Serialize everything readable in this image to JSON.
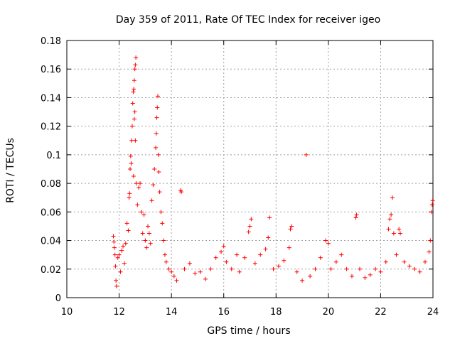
{
  "chart_data": {
    "type": "scatter",
    "title": "Day 359 of 2011, Rate Of TEC Index for receiver igeo",
    "xlabel": "GPS time / hours",
    "ylabel": "ROTI / TECUs",
    "xlim": [
      10,
      24
    ],
    "ylim": [
      0,
      0.18
    ],
    "x_ticks": [
      "10",
      "12",
      "14",
      "16",
      "18",
      "20",
      "22",
      "24"
    ],
    "y_ticks": [
      "0",
      "0.02",
      "0.04",
      "0.06",
      "0.08",
      "0.1",
      "0.12",
      "0.14",
      "0.16",
      "0.18"
    ],
    "grid": true,
    "marker": "+",
    "color": "#ff0000",
    "series": [
      {
        "points": [
          [
            11.78,
            0.043
          ],
          [
            11.8,
            0.039
          ],
          [
            11.82,
            0.035
          ],
          [
            11.84,
            0.03
          ],
          [
            11.86,
            0.022
          ],
          [
            11.88,
            0.012
          ],
          [
            11.9,
            0.008
          ],
          [
            11.95,
            0.028
          ],
          [
            12.0,
            0.03
          ],
          [
            12.05,
            0.018
          ],
          [
            12.1,
            0.033
          ],
          [
            12.15,
            0.036
          ],
          [
            12.2,
            0.024
          ],
          [
            12.25,
            0.038
          ],
          [
            12.3,
            0.052
          ],
          [
            12.35,
            0.047
          ],
          [
            12.38,
            0.07
          ],
          [
            12.4,
            0.073
          ],
          [
            12.42,
            0.09
          ],
          [
            12.44,
            0.099
          ],
          [
            12.46,
            0.094
          ],
          [
            12.48,
            0.11
          ],
          [
            12.5,
            0.12
          ],
          [
            12.52,
            0.136
          ],
          [
            12.54,
            0.144
          ],
          [
            12.56,
            0.146
          ],
          [
            12.58,
            0.152
          ],
          [
            12.6,
            0.16
          ],
          [
            12.62,
            0.163
          ],
          [
            12.64,
            0.168
          ],
          [
            12.6,
            0.13
          ],
          [
            12.58,
            0.125
          ],
          [
            12.62,
            0.11
          ],
          [
            12.55,
            0.085
          ],
          [
            12.65,
            0.08
          ],
          [
            12.7,
            0.065
          ],
          [
            12.75,
            0.077
          ],
          [
            12.8,
            0.08
          ],
          [
            12.85,
            0.06
          ],
          [
            12.9,
            0.045
          ],
          [
            12.95,
            0.058
          ],
          [
            13.0,
            0.04
          ],
          [
            13.05,
            0.035
          ],
          [
            13.1,
            0.05
          ],
          [
            13.15,
            0.045
          ],
          [
            13.2,
            0.038
          ],
          [
            13.25,
            0.068
          ],
          [
            13.3,
            0.079
          ],
          [
            13.35,
            0.09
          ],
          [
            13.4,
            0.105
          ],
          [
            13.42,
            0.115
          ],
          [
            13.44,
            0.126
          ],
          [
            13.46,
            0.133
          ],
          [
            13.48,
            0.141
          ],
          [
            13.5,
            0.1
          ],
          [
            13.52,
            0.088
          ],
          [
            13.55,
            0.074
          ],
          [
            13.6,
            0.06
          ],
          [
            13.65,
            0.052
          ],
          [
            13.7,
            0.04
          ],
          [
            13.75,
            0.03
          ],
          [
            13.8,
            0.025
          ],
          [
            13.9,
            0.02
          ],
          [
            14.0,
            0.018
          ],
          [
            14.1,
            0.015
          ],
          [
            14.2,
            0.012
          ],
          [
            14.35,
            0.075
          ],
          [
            14.38,
            0.074
          ],
          [
            14.5,
            0.02
          ],
          [
            14.7,
            0.024
          ],
          [
            14.9,
            0.017
          ],
          [
            15.1,
            0.018
          ],
          [
            15.3,
            0.013
          ],
          [
            15.5,
            0.02
          ],
          [
            15.7,
            0.028
          ],
          [
            15.9,
            0.032
          ],
          [
            16.0,
            0.036
          ],
          [
            16.1,
            0.025
          ],
          [
            16.3,
            0.02
          ],
          [
            16.5,
            0.03
          ],
          [
            16.6,
            0.018
          ],
          [
            16.8,
            0.028
          ],
          [
            16.95,
            0.046
          ],
          [
            17.0,
            0.05
          ],
          [
            17.05,
            0.055
          ],
          [
            17.2,
            0.024
          ],
          [
            17.4,
            0.03
          ],
          [
            17.6,
            0.034
          ],
          [
            17.7,
            0.042
          ],
          [
            17.75,
            0.056
          ],
          [
            17.9,
            0.02
          ],
          [
            18.1,
            0.022
          ],
          [
            18.3,
            0.026
          ],
          [
            18.5,
            0.035
          ],
          [
            18.55,
            0.048
          ],
          [
            18.6,
            0.05
          ],
          [
            18.8,
            0.018
          ],
          [
            19.0,
            0.012
          ],
          [
            19.15,
            0.1
          ],
          [
            19.3,
            0.015
          ],
          [
            19.5,
            0.02
          ],
          [
            19.7,
            0.028
          ],
          [
            19.9,
            0.04
          ],
          [
            20.0,
            0.038
          ],
          [
            20.1,
            0.02
          ],
          [
            20.3,
            0.025
          ],
          [
            20.5,
            0.03
          ],
          [
            20.7,
            0.02
          ],
          [
            20.9,
            0.015
          ],
          [
            21.05,
            0.056
          ],
          [
            21.08,
            0.058
          ],
          [
            21.2,
            0.02
          ],
          [
            21.4,
            0.014
          ],
          [
            21.6,
            0.016
          ],
          [
            21.8,
            0.02
          ],
          [
            22.0,
            0.018
          ],
          [
            22.2,
            0.025
          ],
          [
            22.3,
            0.048
          ],
          [
            22.35,
            0.055
          ],
          [
            22.4,
            0.058
          ],
          [
            22.45,
            0.07
          ],
          [
            22.5,
            0.045
          ],
          [
            22.6,
            0.03
          ],
          [
            22.7,
            0.048
          ],
          [
            22.75,
            0.045
          ],
          [
            22.9,
            0.025
          ],
          [
            23.1,
            0.022
          ],
          [
            23.3,
            0.02
          ],
          [
            23.5,
            0.018
          ],
          [
            23.7,
            0.025
          ],
          [
            23.85,
            0.032
          ],
          [
            23.9,
            0.04
          ],
          [
            23.95,
            0.06
          ],
          [
            23.97,
            0.065
          ],
          [
            23.99,
            0.068
          ]
        ]
      }
    ]
  }
}
